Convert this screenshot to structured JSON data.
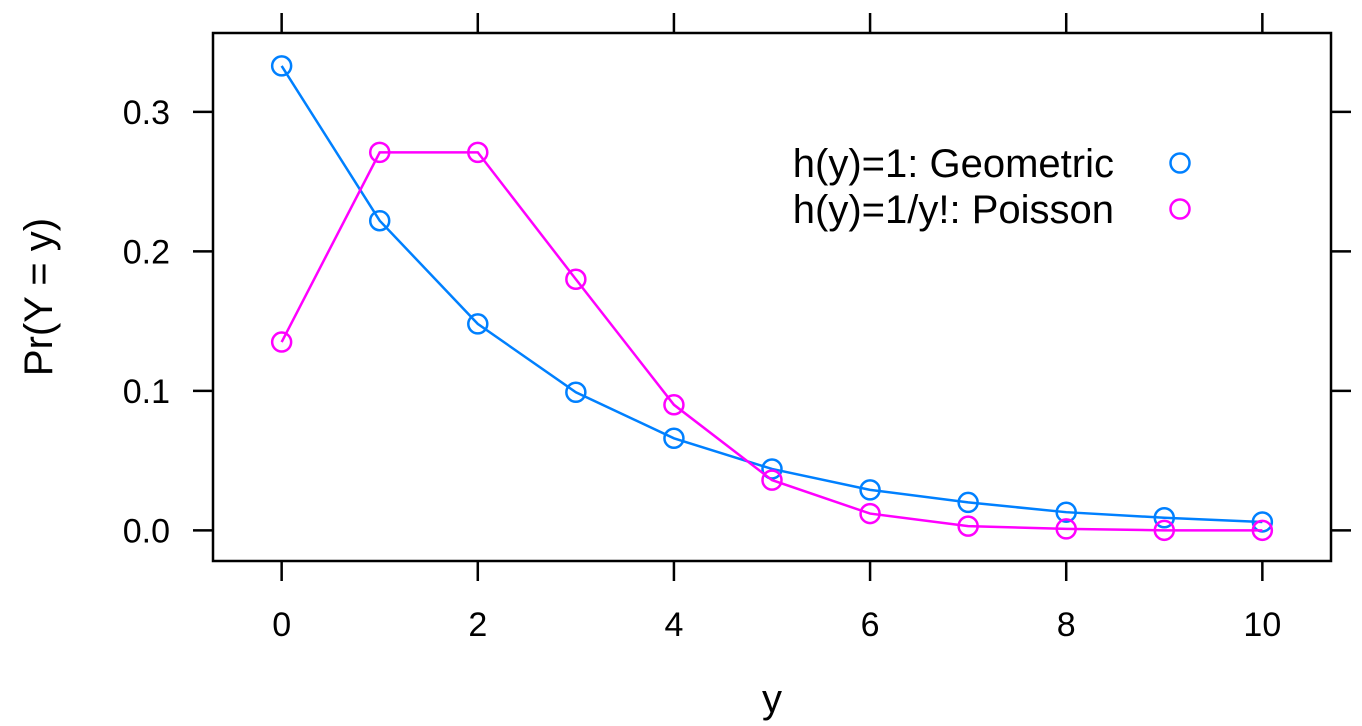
{
  "chart_data": {
    "type": "line",
    "title": "",
    "xlabel": "y",
    "ylabel": "Pr(Y = y)",
    "xlim": [
      -0.7,
      10.7
    ],
    "ylim": [
      -0.022,
      0.3566
    ],
    "x_ticks": [
      0,
      2,
      4,
      6,
      8,
      10
    ],
    "x_tick_labels": [
      "0",
      "2",
      "4",
      "6",
      "8",
      "10"
    ],
    "y_ticks": [
      0.0,
      0.1,
      0.2,
      0.3
    ],
    "y_tick_labels": [
      "0.0",
      "0.1",
      "0.2",
      "0.3"
    ],
    "grid": false,
    "legend_position": "top-right",
    "x": [
      0,
      1,
      2,
      3,
      4,
      5,
      6,
      7,
      8,
      9,
      10
    ],
    "series": [
      {
        "name": "h(y)=1: Geometric",
        "color": "#0080ff",
        "values": [
          0.333,
          0.222,
          0.148,
          0.099,
          0.066,
          0.044,
          0.029,
          0.02,
          0.013,
          0.009,
          0.006
        ]
      },
      {
        "name": "h(y)=1/y!: Poisson",
        "color": "#ff00ff",
        "values": [
          0.135,
          0.271,
          0.271,
          0.18,
          0.09,
          0.036,
          0.012,
          0.003,
          0.001,
          0.0,
          0.0
        ]
      }
    ]
  }
}
